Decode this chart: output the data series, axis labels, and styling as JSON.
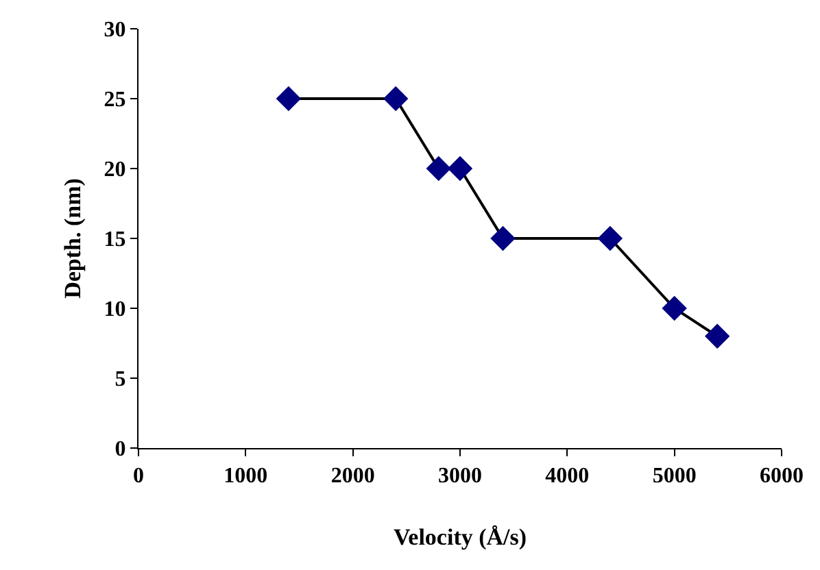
{
  "chart_data": {
    "type": "line",
    "xlabel": "Velocity (Å/s)",
    "ylabel": "Depth. (nm)",
    "x": [
      1400,
      2400,
      2800,
      3000,
      3400,
      4400,
      5000,
      5400
    ],
    "series": [
      {
        "color": "#000080",
        "values": [
          25,
          25,
          20,
          20,
          15,
          15,
          10,
          8
        ]
      }
    ],
    "xlim": [
      0,
      6000
    ],
    "xticks": [
      0,
      1000,
      2000,
      3000,
      4000,
      5000,
      6000
    ],
    "ylim": [
      0,
      30
    ],
    "yticks": [
      0,
      5,
      10,
      15,
      20,
      25,
      30
    ],
    "marker": "diamond",
    "line_style": "solid"
  }
}
